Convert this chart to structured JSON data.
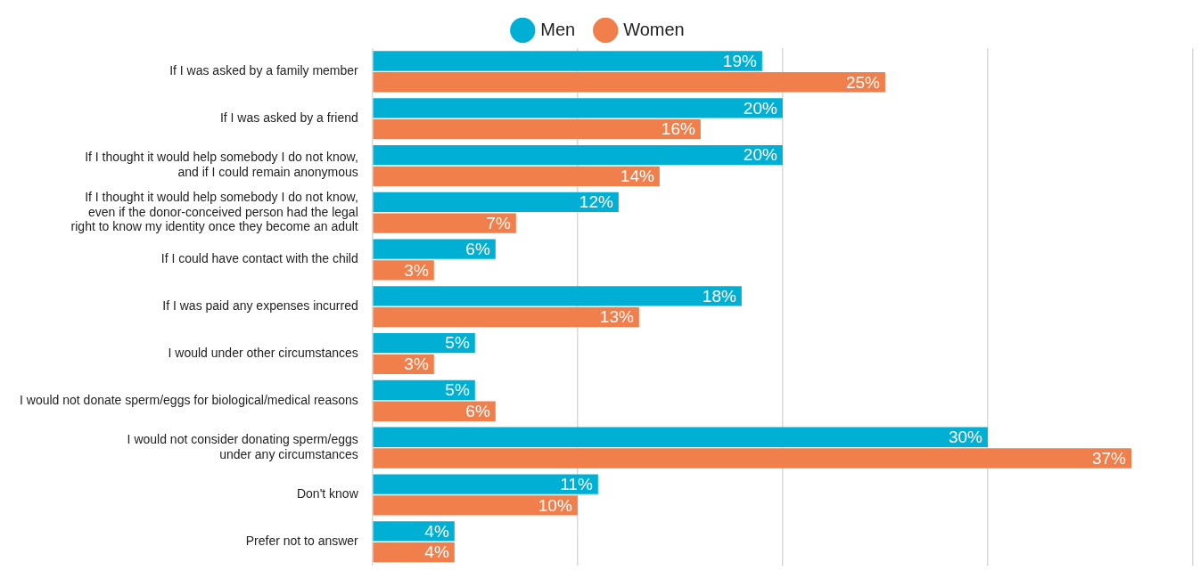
{
  "chart_data": {
    "type": "bar",
    "orientation": "horizontal",
    "categories": [
      "If I was asked by a family member",
      "If I was asked by a friend",
      "If I thought it would help somebody I do not know,\nand if I could remain anonymous",
      "If I thought it would help somebody I do not know,\neven if the donor-conceived person had the legal\nright to know my identity once they become an adult",
      "If I could have contact with the child",
      "If I was paid any expenses incurred",
      "I would under other circumstances",
      "I would not donate sperm/eggs for biological/medical reasons",
      "I would not consider donating sperm/eggs\nunder any circumstances",
      "Don't know",
      "Prefer not to answer"
    ],
    "series": [
      {
        "name": "Men",
        "color": "#00b0d4",
        "values": [
          19,
          20,
          20,
          12,
          6,
          18,
          5,
          5,
          30,
          11,
          4
        ],
        "value_labels": [
          "19%",
          "20%",
          "20%",
          "12%",
          "6%",
          "18%",
          "5%",
          "5%",
          "30%",
          "11%",
          "4%"
        ]
      },
      {
        "name": "Women",
        "color": "#f07f4c",
        "values": [
          25,
          16,
          14,
          7,
          3,
          13,
          3,
          6,
          37,
          10,
          4
        ],
        "value_labels": [
          "25%",
          "16%",
          "14%",
          "7%",
          "3%",
          "13%",
          "3%",
          "6%",
          "37%",
          "10%",
          "4%"
        ]
      }
    ],
    "grid": "x",
    "tick_labels": "y",
    "legend": "top"
  }
}
